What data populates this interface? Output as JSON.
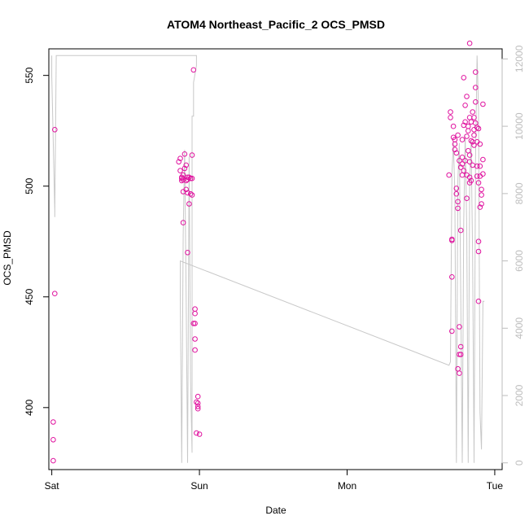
{
  "chart_data": {
    "type": "scatter",
    "title": "ATOM4 Northeast_Pacific_2 OCS_PMSD",
    "xlabel": "Date",
    "ylabel": "OCS_PMSD",
    "x_ticks": [
      {
        "label": "Sat",
        "day": 0
      },
      {
        "label": "Sun",
        "day": 1
      },
      {
        "label": "Mon",
        "day": 2
      },
      {
        "label": "Tue",
        "day": 3
      }
    ],
    "xlim_days": [
      -0.02,
      3.05
    ],
    "ylim": [
      372,
      562
    ],
    "y_ticks": [
      400,
      450,
      500,
      550
    ],
    "y2lim": [
      -200,
      12300
    ],
    "y2_ticks": [
      0,
      2000,
      4000,
      6000,
      8000,
      10000,
      12000
    ],
    "grid": false,
    "colors": {
      "points": "#e0139f",
      "line": "#c8c8c8",
      "axis": "#000000",
      "right_axis": "#bdbdbd"
    },
    "series": [
      {
        "points": [
          [
            0.02,
            525.5
          ],
          [
            0.02,
            451.5
          ],
          [
            0.01,
            393.5
          ],
          [
            0.01,
            385.5
          ],
          [
            0.01,
            376
          ],
          [
            0.86,
            511
          ],
          [
            0.87,
            512.5
          ],
          [
            0.87,
            507
          ],
          [
            0.88,
            504
          ],
          [
            0.88,
            503.5
          ],
          [
            0.88,
            502.5
          ],
          [
            0.89,
            505
          ],
          [
            0.89,
            503
          ],
          [
            0.89,
            497.5
          ],
          [
            0.89,
            483.5
          ],
          [
            0.9,
            514.5
          ],
          [
            0.9,
            508
          ],
          [
            0.91,
            509.5
          ],
          [
            0.91,
            502.5
          ],
          [
            0.91,
            498.5
          ],
          [
            0.92,
            504
          ],
          [
            0.92,
            503
          ],
          [
            0.92,
            497
          ],
          [
            0.92,
            470
          ],
          [
            0.93,
            504
          ],
          [
            0.93,
            492
          ],
          [
            0.94,
            503.5
          ],
          [
            0.94,
            496.5
          ],
          [
            0.95,
            514
          ],
          [
            0.95,
            503.5
          ],
          [
            0.95,
            496
          ],
          [
            0.96,
            552.5
          ],
          [
            0.96,
            438
          ],
          [
            0.97,
            444.5
          ],
          [
            0.97,
            442.5
          ],
          [
            0.97,
            438
          ],
          [
            0.97,
            431
          ],
          [
            0.97,
            426
          ],
          [
            0.98,
            402.5
          ],
          [
            0.98,
            388.5
          ],
          [
            0.99,
            402
          ],
          [
            0.99,
            400.5
          ],
          [
            0.99,
            399.5
          ],
          [
            0.99,
            405
          ],
          [
            1.0,
            388
          ],
          [
            2.69,
            505
          ],
          [
            2.7,
            531
          ],
          [
            2.7,
            533.5
          ],
          [
            2.71,
            476
          ],
          [
            2.71,
            475.5
          ],
          [
            2.71,
            459
          ],
          [
            2.71,
            434.5
          ],
          [
            2.72,
            527
          ],
          [
            2.72,
            522
          ],
          [
            2.73,
            521
          ],
          [
            2.73,
            519
          ],
          [
            2.73,
            516.5
          ],
          [
            2.74,
            515
          ],
          [
            2.74,
            499
          ],
          [
            2.74,
            496.5
          ],
          [
            2.75,
            523
          ],
          [
            2.75,
            493
          ],
          [
            2.75,
            490
          ],
          [
            2.75,
            417.5
          ],
          [
            2.76,
            511.5
          ],
          [
            2.76,
            415.5
          ],
          [
            2.76,
            436.5
          ],
          [
            2.76,
            424
          ],
          [
            2.77,
            508.5
          ],
          [
            2.77,
            427.5
          ],
          [
            2.77,
            424
          ],
          [
            2.77,
            480
          ],
          [
            2.78,
            521
          ],
          [
            2.78,
            513
          ],
          [
            2.78,
            510
          ],
          [
            2.78,
            505
          ],
          [
            2.79,
            549
          ],
          [
            2.79,
            527.5
          ],
          [
            2.79,
            507
          ],
          [
            2.8,
            536.5
          ],
          [
            2.8,
            529
          ],
          [
            2.8,
            511.5
          ],
          [
            2.81,
            540.5
          ],
          [
            2.81,
            522.5
          ],
          [
            2.81,
            505
          ],
          [
            2.81,
            494.5
          ],
          [
            2.82,
            527
          ],
          [
            2.82,
            525
          ],
          [
            2.82,
            516
          ],
          [
            2.83,
            531
          ],
          [
            2.83,
            514
          ],
          [
            2.83,
            511
          ],
          [
            2.83,
            504
          ],
          [
            2.83,
            501.5
          ],
          [
            2.83,
            564.5
          ],
          [
            2.84,
            529
          ],
          [
            2.84,
            520.5
          ],
          [
            2.84,
            502.5
          ],
          [
            2.85,
            533.5
          ],
          [
            2.85,
            520
          ],
          [
            2.85,
            509.5
          ],
          [
            2.86,
            531
          ],
          [
            2.86,
            525.5
          ],
          [
            2.86,
            523
          ],
          [
            2.86,
            518.5
          ],
          [
            2.87,
            551.5
          ],
          [
            2.87,
            544.5
          ],
          [
            2.87,
            538
          ],
          [
            2.87,
            528.5
          ],
          [
            2.88,
            526.5
          ],
          [
            2.88,
            520
          ],
          [
            2.88,
            509
          ],
          [
            2.88,
            504.5
          ],
          [
            2.89,
            526
          ],
          [
            2.89,
            501.5
          ],
          [
            2.89,
            475
          ],
          [
            2.89,
            470.5
          ],
          [
            2.89,
            448
          ],
          [
            2.9,
            519
          ],
          [
            2.9,
            509
          ],
          [
            2.9,
            504.5
          ],
          [
            2.9,
            490.5
          ],
          [
            2.91,
            498.5
          ],
          [
            2.91,
            496
          ],
          [
            2.91,
            492
          ],
          [
            2.92,
            512
          ],
          [
            2.92,
            505.5
          ],
          [
            2.92,
            537
          ]
        ]
      },
      {
        "axis": "right",
        "points": [
          [
            0.0,
            12100
          ],
          [
            0.0,
            11500
          ],
          [
            0.02,
            7500
          ],
          [
            0.02,
            7300
          ],
          [
            0.03,
            12100
          ],
          [
            0.98,
            12100
          ],
          [
            0.98,
            11800
          ],
          [
            0.96,
            11300
          ],
          [
            0.96,
            10300
          ],
          [
            0.95,
            10300
          ],
          [
            0.95,
            300
          ],
          [
            0.94,
            2400
          ],
          [
            0.93,
            9100
          ],
          [
            0.92,
            0
          ],
          [
            0.91,
            5000
          ],
          [
            0.9,
            9300
          ],
          [
            0.89,
            6800
          ],
          [
            0.88,
            0
          ],
          [
            0.87,
            5000
          ],
          [
            0.87,
            6000
          ],
          [
            2.69,
            2900
          ],
          [
            2.7,
            3000
          ],
          [
            2.71,
            8600
          ],
          [
            2.72,
            9500
          ],
          [
            2.73,
            8000
          ],
          [
            2.74,
            0
          ],
          [
            2.75,
            8400
          ],
          [
            2.76,
            9500
          ],
          [
            2.77,
            4800
          ],
          [
            2.78,
            0
          ],
          [
            2.79,
            7200
          ],
          [
            2.8,
            9700
          ],
          [
            2.81,
            7000
          ],
          [
            2.82,
            0
          ],
          [
            2.83,
            8300
          ],
          [
            2.84,
            9600
          ],
          [
            2.85,
            6200
          ],
          [
            2.86,
            0
          ],
          [
            2.87,
            9000
          ],
          [
            2.88,
            12100
          ],
          [
            2.89,
            10500
          ],
          [
            2.9,
            1500
          ],
          [
            2.91,
            400
          ],
          [
            2.92,
            4800
          ],
          [
            2.93,
            4800
          ]
        ]
      }
    ]
  }
}
